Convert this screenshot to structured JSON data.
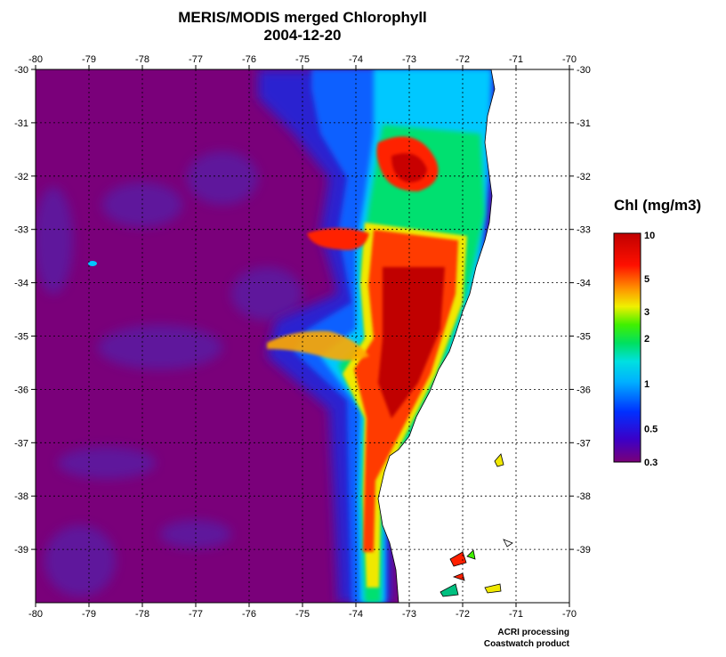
{
  "title": {
    "line1": "MERIS/MODIS merged Chlorophyll",
    "line2": "2004-12-20"
  },
  "map": {
    "lon_range": [
      -80,
      -70
    ],
    "lat_range": [
      -40,
      -30
    ],
    "lon_ticks": [
      "-80",
      "-79",
      "-78",
      "-77",
      "-76",
      "-75",
      "-74",
      "-73",
      "-72",
      "-71",
      "-70"
    ],
    "lat_ticks": [
      "-30",
      "-31",
      "-32",
      "-33",
      "-34",
      "-35",
      "-36",
      "-37",
      "-38",
      "-39"
    ],
    "grid": "dotted",
    "colors": {
      "open_ocean": "#7a007a",
      "land": "#ffffff"
    }
  },
  "legend": {
    "title": "Chl (mg/m3)",
    "labels": [
      "10",
      "5",
      "3",
      "2",
      "1",
      "0.5",
      "0.3"
    ],
    "scale": "log",
    "colors": [
      "#7a0078",
      "#3b00c8",
      "#0030ff",
      "#00b0ff",
      "#00e0e0",
      "#00e060",
      "#40f000",
      "#f0f000",
      "#ff9000",
      "#ff1000",
      "#c00000"
    ]
  },
  "credits": {
    "line1": "ACRI processing",
    "line2": "Coastwatch product"
  }
}
